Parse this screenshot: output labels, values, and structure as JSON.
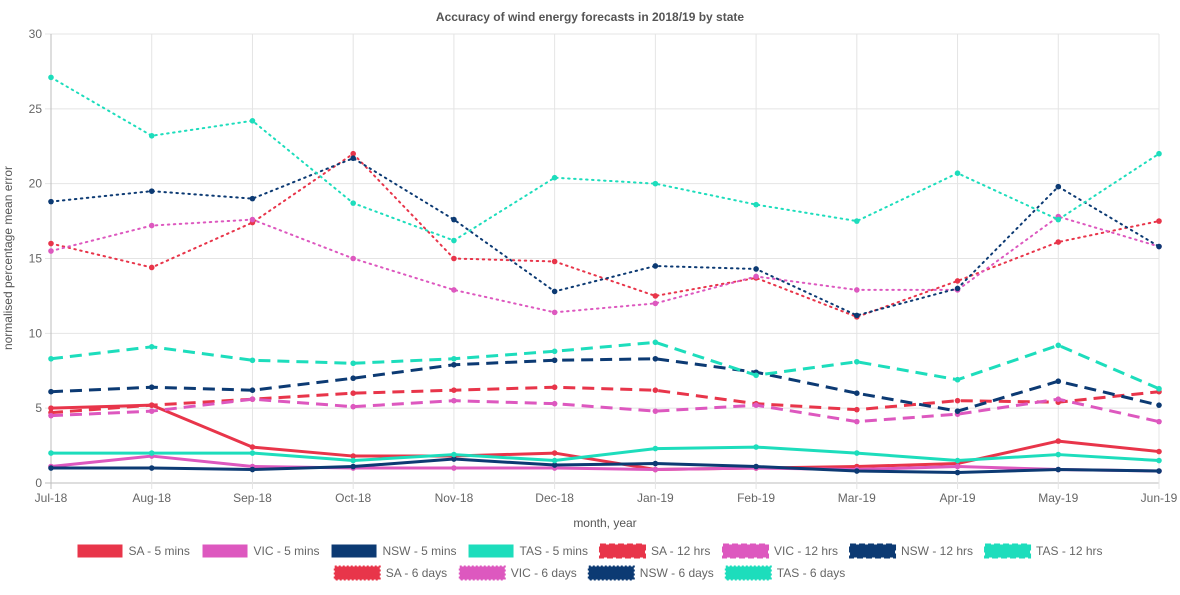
{
  "chart_data": {
    "type": "line",
    "title": "Accuracy of wind energy forecasts in 2018/19 by state",
    "xlabel": "month, year",
    "ylabel": "normalised percentage mean error",
    "ylim": [
      0,
      30
    ],
    "yticks": [
      0,
      5,
      10,
      15,
      20,
      25,
      30
    ],
    "grid": true,
    "legend_position": "bottom",
    "categories": [
      "Jul-18",
      "Aug-18",
      "Sep-18",
      "Oct-18",
      "Nov-18",
      "Dec-18",
      "Jan-19",
      "Feb-19",
      "Mar-19",
      "Apr-19",
      "May-19",
      "Jun-19"
    ],
    "series": [
      {
        "name": "SA - 5 mins",
        "color": "#e8354a",
        "style": "solid",
        "values": [
          5.0,
          5.2,
          2.4,
          1.8,
          1.8,
          2.0,
          0.9,
          1.0,
          1.1,
          1.3,
          2.8,
          2.1
        ]
      },
      {
        "name": "VIC - 5 mins",
        "color": "#dd58bf",
        "style": "solid",
        "values": [
          1.1,
          1.8,
          1.1,
          1.0,
          1.0,
          1.0,
          0.9,
          1.0,
          0.9,
          1.1,
          0.9,
          0.8
        ]
      },
      {
        "name": "NSW - 5 mins",
        "color": "#0c3a73",
        "style": "solid",
        "values": [
          1.0,
          1.0,
          0.9,
          1.1,
          1.6,
          1.2,
          1.3,
          1.1,
          0.8,
          0.7,
          0.9,
          0.8
        ]
      },
      {
        "name": "TAS - 5 mins",
        "color": "#1dddbc",
        "style": "solid",
        "values": [
          2.0,
          2.0,
          2.0,
          1.5,
          1.9,
          1.5,
          2.3,
          2.4,
          2.0,
          1.5,
          1.9,
          1.5
        ]
      },
      {
        "name": "SA - 12 hrs",
        "color": "#e8354a",
        "style": "dashed",
        "values": [
          4.7,
          5.2,
          5.6,
          6.0,
          6.2,
          6.4,
          6.2,
          5.3,
          4.9,
          5.5,
          5.4,
          6.1
        ]
      },
      {
        "name": "VIC - 12 hrs",
        "color": "#dd58bf",
        "style": "dashed",
        "values": [
          4.5,
          4.8,
          5.6,
          5.1,
          5.5,
          5.3,
          4.8,
          5.2,
          4.1,
          4.6,
          5.6,
          4.1
        ]
      },
      {
        "name": "NSW - 12 hrs",
        "color": "#0c3a73",
        "style": "dashed",
        "values": [
          6.1,
          6.4,
          6.2,
          7.0,
          7.9,
          8.2,
          8.3,
          7.4,
          6.0,
          4.8,
          6.8,
          5.2
        ]
      },
      {
        "name": "TAS - 12 hrs",
        "color": "#1dddbc",
        "style": "dashed",
        "values": [
          8.3,
          9.1,
          8.2,
          8.0,
          8.3,
          8.8,
          9.4,
          7.2,
          8.1,
          6.9,
          9.2,
          6.3
        ]
      },
      {
        "name": "SA - 6 days",
        "color": "#e8354a",
        "style": "dotted",
        "values": [
          16.0,
          14.4,
          17.4,
          22.0,
          15.0,
          14.8,
          12.5,
          13.7,
          11.1,
          13.5,
          16.1,
          17.5
        ]
      },
      {
        "name": "VIC - 6 days",
        "color": "#dd58bf",
        "style": "dotted",
        "values": [
          15.5,
          17.2,
          17.6,
          15.0,
          12.9,
          11.4,
          12.0,
          13.8,
          12.9,
          12.9,
          17.8,
          15.8
        ]
      },
      {
        "name": "NSW - 6 days",
        "color": "#0c3a73",
        "style": "dotted",
        "values": [
          18.8,
          19.5,
          19.0,
          21.7,
          17.6,
          12.8,
          14.5,
          14.3,
          11.2,
          13.0,
          19.8,
          15.8
        ]
      },
      {
        "name": "TAS - 6 days",
        "color": "#1dddbc",
        "style": "dotted",
        "values": [
          27.1,
          23.2,
          24.2,
          18.7,
          16.2,
          20.4,
          20.0,
          18.6,
          17.5,
          20.7,
          17.6,
          22.0
        ]
      }
    ]
  }
}
